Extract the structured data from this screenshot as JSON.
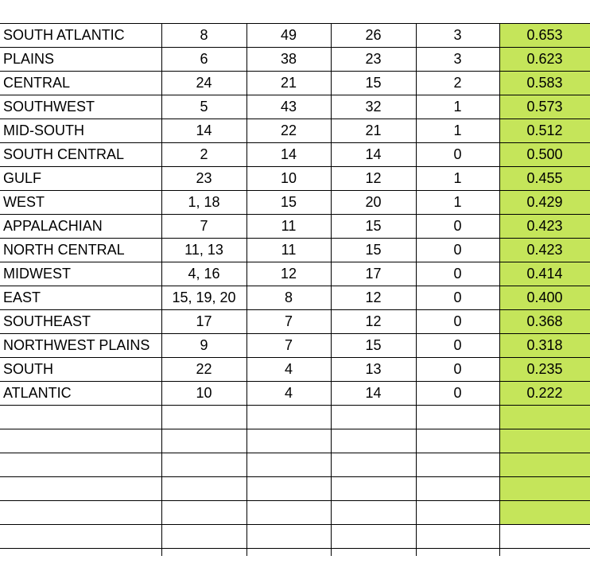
{
  "rows": [
    {
      "name": "SOUTH ATLANTIC",
      "c1": "8",
      "c2": "49",
      "c3": "26",
      "c4": "3",
      "pct": "0.653"
    },
    {
      "name": "PLAINS",
      "c1": "6",
      "c2": "38",
      "c3": "23",
      "c4": "3",
      "pct": "0.623"
    },
    {
      "name": "CENTRAL",
      "c1": "24",
      "c2": "21",
      "c3": "15",
      "c4": "2",
      "pct": "0.583"
    },
    {
      "name": "SOUTHWEST",
      "c1": "5",
      "c2": "43",
      "c3": "32",
      "c4": "1",
      "pct": "0.573"
    },
    {
      "name": "MID-SOUTH",
      "c1": "14",
      "c2": "22",
      "c3": "21",
      "c4": "1",
      "pct": "0.512"
    },
    {
      "name": "SOUTH CENTRAL",
      "c1": "2",
      "c2": "14",
      "c3": "14",
      "c4": "0",
      "pct": "0.500"
    },
    {
      "name": "GULF",
      "c1": "23",
      "c2": "10",
      "c3": "12",
      "c4": "1",
      "pct": "0.455"
    },
    {
      "name": "WEST",
      "c1": "1, 18",
      "c2": "15",
      "c3": "20",
      "c4": "1",
      "pct": "0.429"
    },
    {
      "name": "APPALACHIAN",
      "c1": "7",
      "c2": "11",
      "c3": "15",
      "c4": "0",
      "pct": "0.423"
    },
    {
      "name": "NORTH CENTRAL",
      "c1": "11, 13",
      "c2": "11",
      "c3": "15",
      "c4": "0",
      "pct": "0.423"
    },
    {
      "name": "MIDWEST",
      "c1": "4, 16",
      "c2": "12",
      "c3": "17",
      "c4": "0",
      "pct": "0.414"
    },
    {
      "name": "EAST",
      "c1": "15, 19, 20",
      "c2": "8",
      "c3": "12",
      "c4": "0",
      "pct": "0.400"
    },
    {
      "name": "SOUTHEAST",
      "c1": "17",
      "c2": "7",
      "c3": "12",
      "c4": "0",
      "pct": "0.368"
    },
    {
      "name": "NORTHWEST PLAINS",
      "c1": "9",
      "c2": "7",
      "c3": "15",
      "c4": "0",
      "pct": "0.318"
    },
    {
      "name": "SOUTH",
      "c1": "22",
      "c2": "4",
      "c3": "13",
      "c4": "0",
      "pct": "0.235"
    },
    {
      "name": "ATLANTIC",
      "c1": "10",
      "c2": "4",
      "c3": "14",
      "c4": "0",
      "pct": "0.222"
    }
  ],
  "colors": {
    "highlight": "#c5e55a",
    "grid": "#000000"
  }
}
